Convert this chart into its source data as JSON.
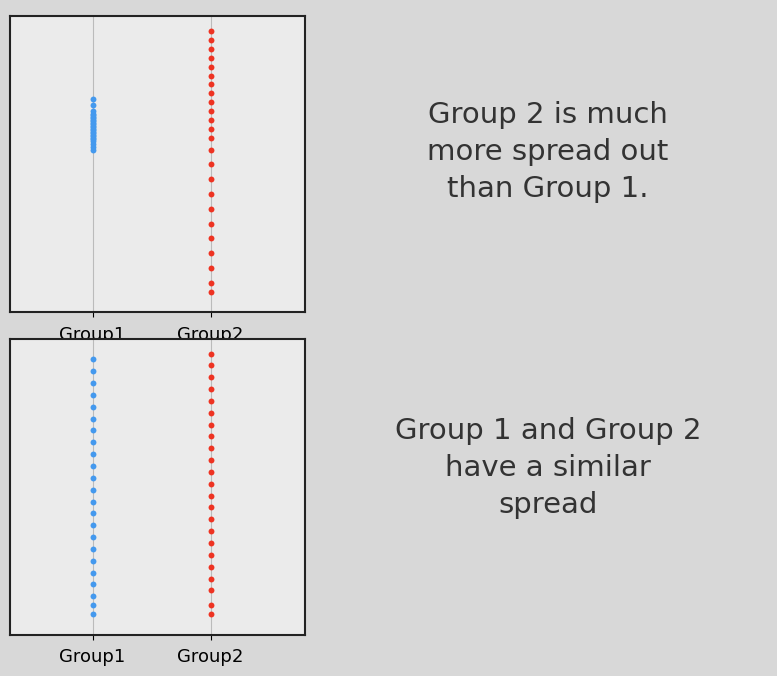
{
  "background_color": "#d8d8d8",
  "plot_bg_color": "#ebebeb",
  "border_color": "#222222",
  "blue_color": "#4499ee",
  "red_color": "#ee3322",
  "line_color": "#bbbbbb",
  "label_fontsize": 13,
  "text_fontsize": 21,
  "text1": "Group 2 is much\nmore spread out\nthan Group 1.",
  "text2": "Group 1 and Group 2\nhave a similar\nspread",
  "group1_label": "Group1",
  "group2_label": "Group2",
  "top_group1_y": [
    72,
    70,
    68,
    67,
    66.5,
    66,
    65.5,
    65,
    64.5,
    64,
    63.5,
    63,
    62.5,
    62,
    61.5,
    61,
    60.5,
    60,
    59.5,
    59,
    58.5,
    58,
    57,
    56,
    55
  ],
  "top_group2_y": [
    95,
    92,
    89,
    86,
    83,
    80,
    77,
    74,
    71,
    68,
    65,
    62,
    59,
    55,
    50,
    45,
    40,
    35,
    30,
    25,
    20,
    15,
    10,
    7
  ],
  "bot_group1_y": [
    93,
    89,
    85,
    81,
    77,
    73,
    69,
    65,
    61,
    57,
    53,
    49,
    45,
    41,
    37,
    33,
    29,
    25,
    21,
    17,
    13,
    10,
    7
  ],
  "bot_group2_y": [
    95,
    91,
    87,
    83,
    79,
    75,
    71,
    67,
    63,
    59,
    55,
    51,
    47,
    43,
    39,
    35,
    31,
    27,
    23,
    19,
    15,
    10,
    7
  ]
}
